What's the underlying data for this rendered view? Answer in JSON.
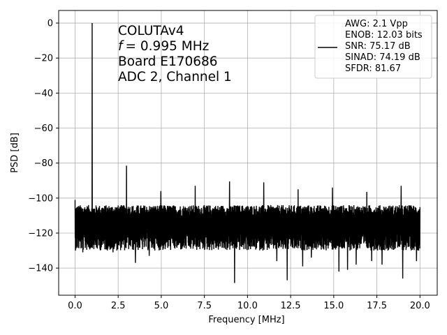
{
  "chart_data": {
    "type": "line",
    "xlabel": "Frequency [MHz]",
    "ylabel": "PSD [dB]",
    "xlim": [
      -0.95,
      21.0
    ],
    "ylim": [
      -155.5,
      7.2
    ],
    "xticks": [
      0.0,
      2.5,
      5.0,
      7.5,
      10.0,
      12.5,
      15.0,
      17.5,
      20.0
    ],
    "xtick_labels": [
      "0.0",
      "2.5",
      "5.0",
      "7.5",
      "10.0",
      "12.5",
      "15.0",
      "17.5",
      "20.0"
    ],
    "yticks": [
      0,
      -20,
      -40,
      -60,
      -80,
      -100,
      -120,
      -140
    ],
    "ytick_labels": [
      "0",
      "−20",
      "−40",
      "−60",
      "−80",
      "−100",
      "−120",
      "−140"
    ],
    "grid": true,
    "line_color": "#000000",
    "annotation_lines": [
      "COLUTAv4",
      "= 0.995 MHz",
      "Board E170686",
      "ADC 2, Channel 1"
    ],
    "annotation_symbol": "f",
    "legend": {
      "placement": "top-right",
      "lines": [
        "AWG: 2.1 Vpp",
        "ENOB: 12.03 bits",
        "SNR: 75.17 dB",
        "SINAD: 74.19 dB",
        "SFDR: 81.67"
      ]
    },
    "series": [
      {
        "noise_floor": {
          "x_range": [
            0.0,
            20.0
          ],
          "center": -114,
          "top": -104,
          "bottom": -130
        },
        "peaks": [
          {
            "x": 0.0,
            "y": -101
          },
          {
            "x": 0.995,
            "y": 0
          },
          {
            "x": 2.985,
            "y": -81.5
          },
          {
            "x": 4.975,
            "y": -96
          },
          {
            "x": 6.965,
            "y": -93
          },
          {
            "x": 8.955,
            "y": -90.5
          },
          {
            "x": 10.945,
            "y": -91
          },
          {
            "x": 12.935,
            "y": -95
          },
          {
            "x": 14.925,
            "y": -94
          },
          {
            "x": 16.915,
            "y": -96.5
          },
          {
            "x": 18.905,
            "y": -93
          }
        ],
        "dips": [
          {
            "x": 0.45,
            "y": -131
          },
          {
            "x": 2.2,
            "y": -131
          },
          {
            "x": 3.5,
            "y": -137
          },
          {
            "x": 4.3,
            "y": -133
          },
          {
            "x": 9.25,
            "y": -148.5
          },
          {
            "x": 11.7,
            "y": -136
          },
          {
            "x": 12.3,
            "y": -147
          },
          {
            "x": 13.2,
            "y": -139
          },
          {
            "x": 13.7,
            "y": -134
          },
          {
            "x": 15.3,
            "y": -142
          },
          {
            "x": 15.8,
            "y": -141
          },
          {
            "x": 16.3,
            "y": -138
          },
          {
            "x": 17.2,
            "y": -136
          },
          {
            "x": 17.8,
            "y": -138
          },
          {
            "x": 19.0,
            "y": -146
          },
          {
            "x": 19.8,
            "y": -136
          }
        ]
      }
    ]
  }
}
